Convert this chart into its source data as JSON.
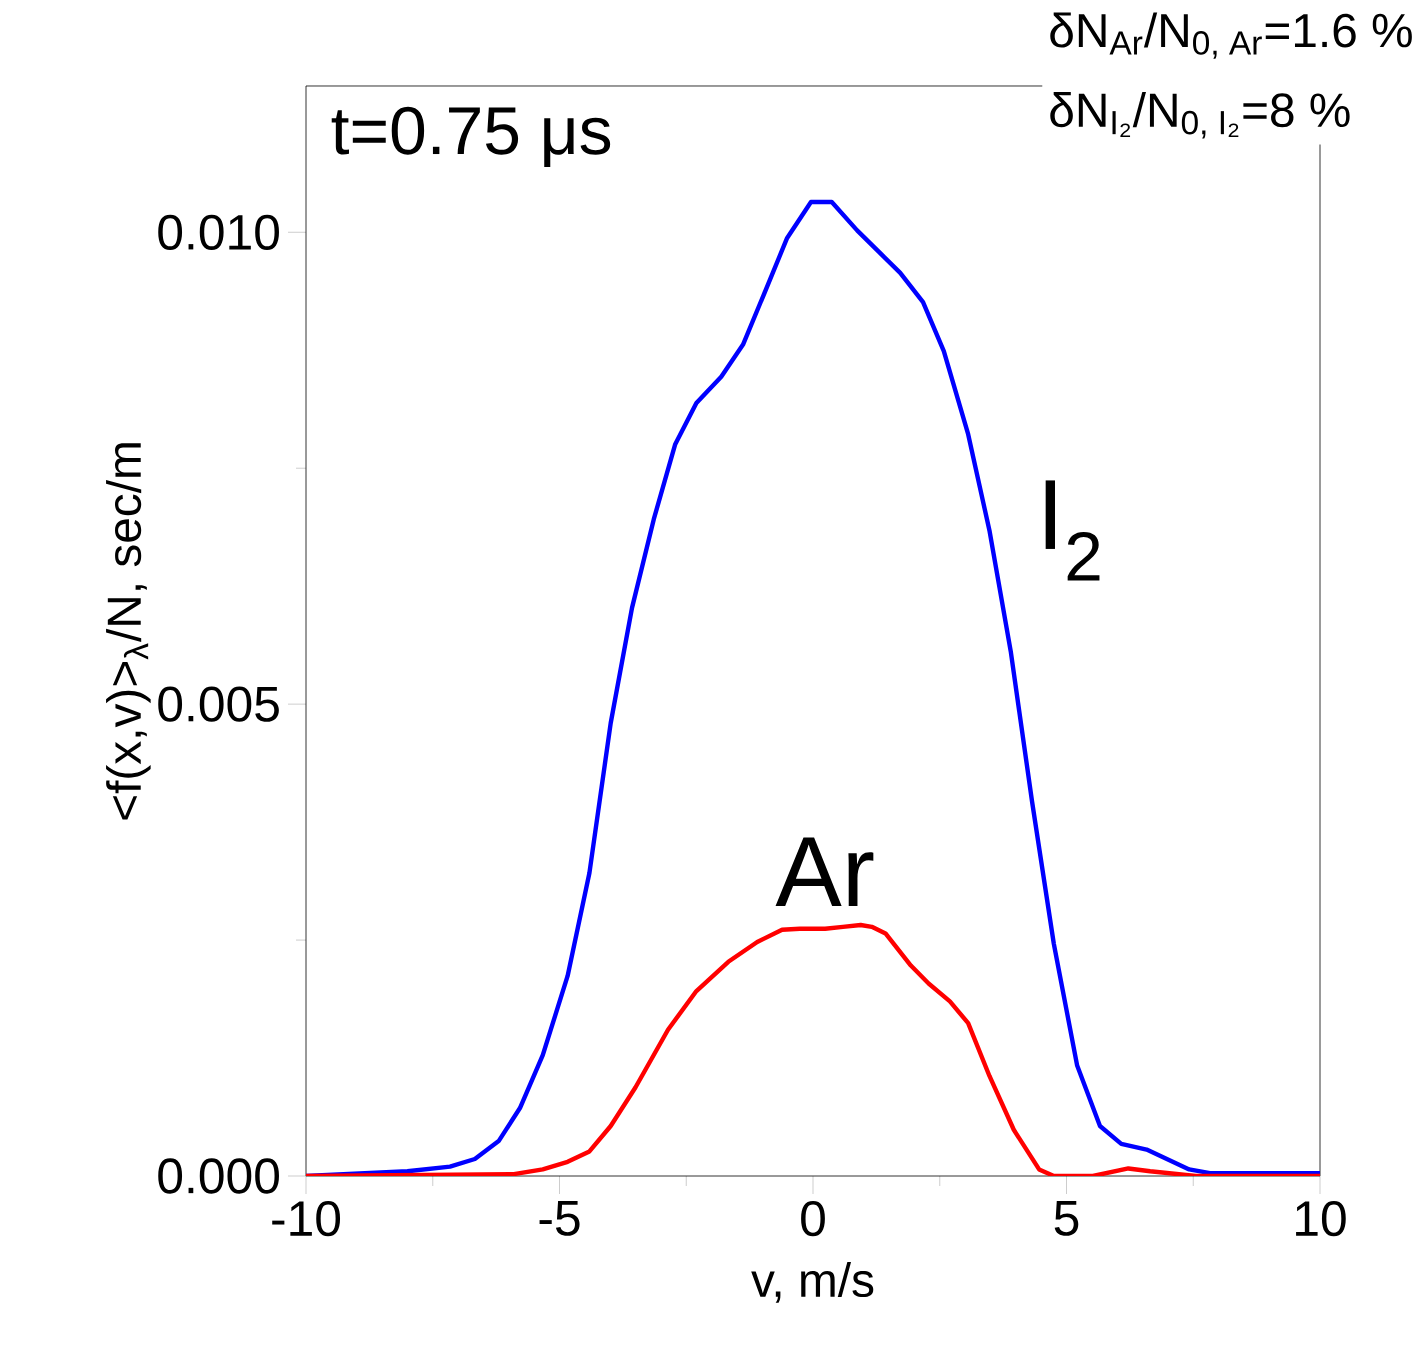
{
  "chart_data": {
    "type": "line",
    "xlabel": "v, m/s",
    "ylabel": "<f(x,v)>$_{λ}$/N, sec/m",
    "xlim": [
      -10,
      10
    ],
    "ylim": [
      0,
      0.01155
    ],
    "xticks": [
      -10,
      -5,
      0,
      5,
      10
    ],
    "yticks": [
      {
        "value": 0,
        "label": "0.000"
      },
      {
        "value": 0.005,
        "label": "0.005"
      },
      {
        "value": 0.01,
        "label": "0.010"
      }
    ],
    "legend": false,
    "grid": false,
    "marker": "none",
    "line_style": "solid",
    "annotations": [
      "t=0.75 μs",
      "δN$_{Ar}$/N$_{0, Ar}$=1.6 %",
      "δN$_{I₂}$/N$_{0, I₂}$=8 %"
    ],
    "series": [
      {
        "name": "I$_{2}$",
        "color": "#0000ff",
        "x": [
          -10,
          -8.0,
          -7.16,
          -6.67,
          -6.2,
          -5.78,
          -5.33,
          -4.84,
          -4.41,
          -3.99,
          -3.57,
          -3.14,
          -2.72,
          -2.3,
          -1.81,
          -1.38,
          -0.97,
          -0.51,
          -0.04,
          0.37,
          0.87,
          1.36,
          1.72,
          2.17,
          2.58,
          3.06,
          3.48,
          3.9,
          4.32,
          4.75,
          5.21,
          5.66,
          6.08,
          6.58,
          7.42,
          7.83,
          10
        ],
        "values": [
          0,
          5e-05,
          0.0001,
          0.00018,
          0.00037,
          0.00072,
          0.00128,
          0.00212,
          0.00321,
          0.0048,
          0.00602,
          0.00696,
          0.00775,
          0.00819,
          0.00847,
          0.00881,
          0.00934,
          0.00994,
          0.01032,
          0.01032,
          0.01002,
          0.00976,
          0.00957,
          0.00926,
          0.00874,
          0.00786,
          0.00684,
          0.00556,
          0.00397,
          0.00246,
          0.00117,
          0.00053,
          0.00034,
          0.00028,
          7e-05,
          3e-05,
          3e-05
        ]
      },
      {
        "name": "Ar",
        "color": "#ff0000",
        "x": [
          -10,
          -5.9,
          -5.33,
          -4.84,
          -4.41,
          -3.99,
          -3.5,
          -2.86,
          -2.3,
          -1.67,
          -1.1,
          -0.61,
          -0.26,
          0.24,
          0.59,
          0.94,
          1.16,
          1.43,
          1.93,
          2.28,
          2.7,
          3.06,
          3.48,
          3.96,
          4.46,
          4.75,
          5.52,
          6.22,
          6.65,
          7.55,
          10
        ],
        "values": [
          0,
          2e-05,
          7e-05,
          0.00015,
          0.00026,
          0.00053,
          0.00094,
          0.00155,
          0.00196,
          0.00227,
          0.00248,
          0.00261,
          0.00262,
          0.00262,
          0.00264,
          0.00266,
          0.00264,
          0.00257,
          0.00223,
          0.00204,
          0.00185,
          0.00162,
          0.00106,
          0.00049,
          7e-05,
          0,
          0,
          8e-05,
          5e-05,
          0,
          0
        ]
      }
    ]
  }
}
